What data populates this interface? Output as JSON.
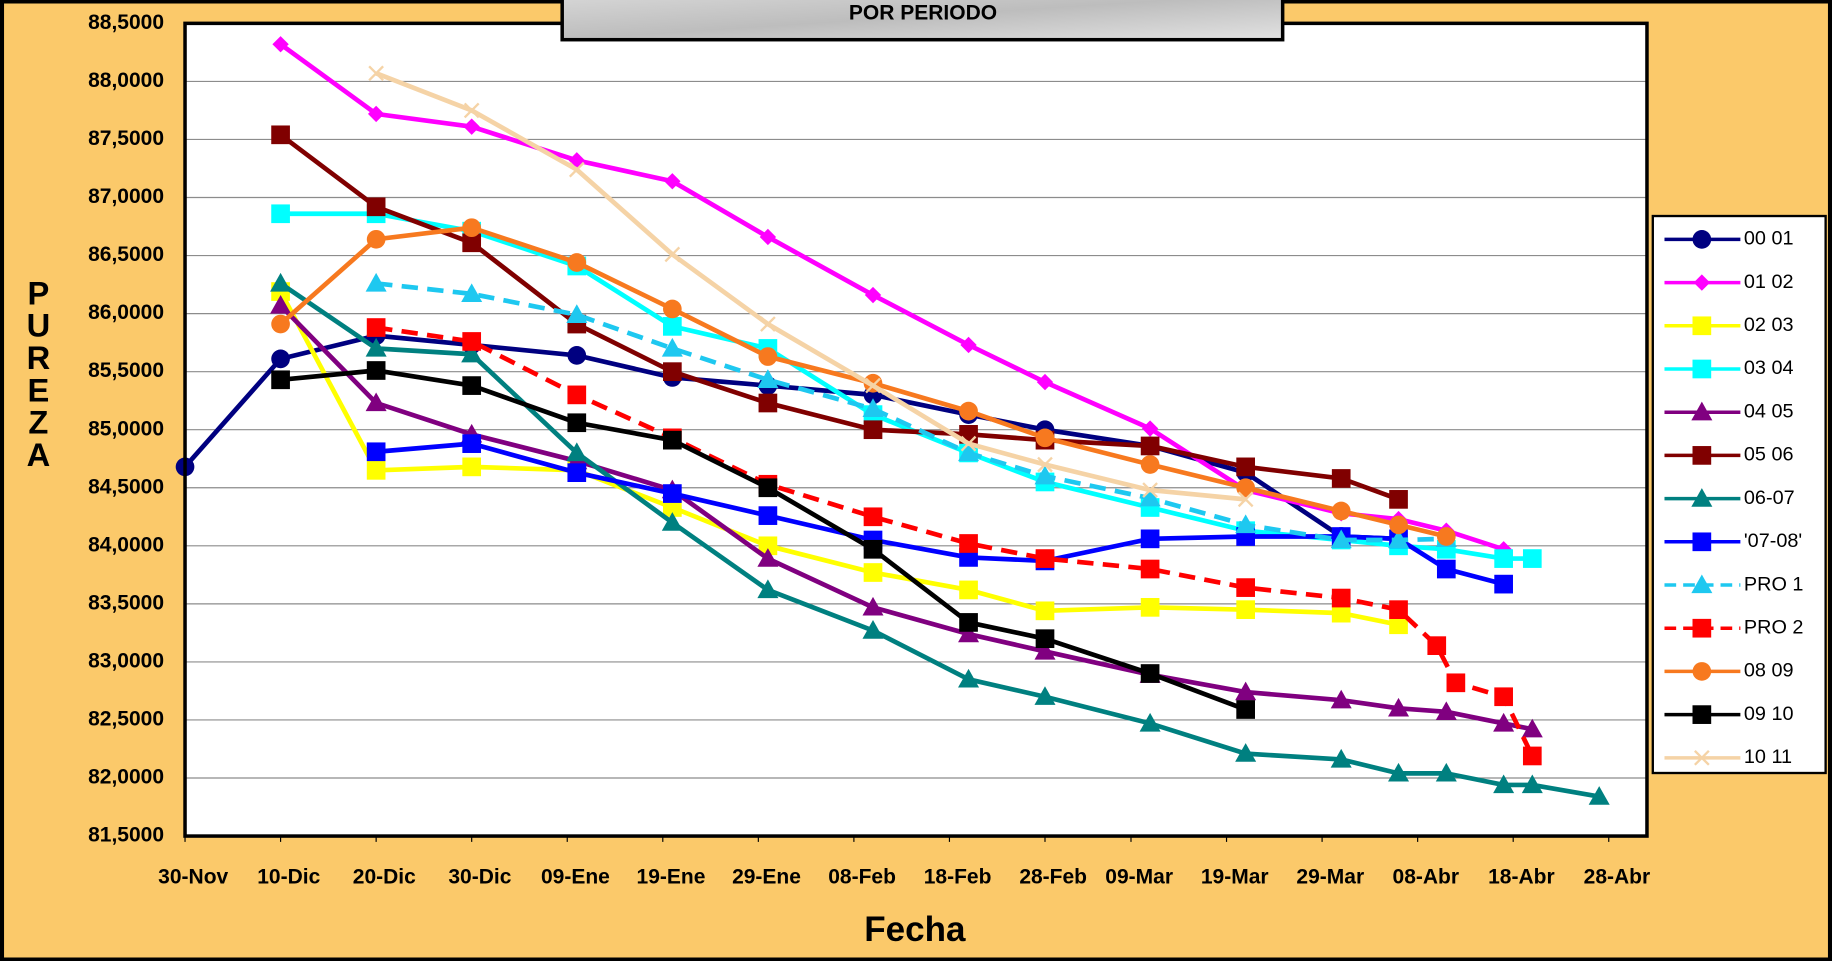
{
  "chart_data": {
    "type": "line",
    "title": "POR PERIODO",
    "x_label": "Fecha",
    "y_label": "PUREZA",
    "xlim": [
      0,
      153
    ],
    "xticks": [
      {
        "value": 0,
        "label": "30-Nov"
      },
      {
        "value": 10,
        "label": "10-Dic"
      },
      {
        "value": 20,
        "label": "20-Dic"
      },
      {
        "value": 30,
        "label": "30-Dic"
      },
      {
        "value": 40,
        "label": "09-Ene"
      },
      {
        "value": 50,
        "label": "19-Ene"
      },
      {
        "value": 60,
        "label": "29-Ene"
      },
      {
        "value": 70,
        "label": "08-Feb"
      },
      {
        "value": 80,
        "label": "18-Feb"
      },
      {
        "value": 90,
        "label": "28-Feb"
      },
      {
        "value": 99,
        "label": "09-Mar"
      },
      {
        "value": 109,
        "label": "19-Mar"
      },
      {
        "value": 119,
        "label": "29-Mar"
      },
      {
        "value": 129,
        "label": "08-Abr"
      },
      {
        "value": 139,
        "label": "18-Abr"
      },
      {
        "value": 149,
        "label": "28-Abr"
      }
    ],
    "ylim": [
      81.5,
      88.5
    ],
    "yticks": [
      {
        "value": 81.5,
        "label": "81,5000"
      },
      {
        "value": 82,
        "label": "82,0000"
      },
      {
        "value": 82.5,
        "label": "82,5000"
      },
      {
        "value": 83,
        "label": "83,0000"
      },
      {
        "value": 83.5,
        "label": "83,5000"
      },
      {
        "value": 84,
        "label": "84,0000"
      },
      {
        "value": 84.5,
        "label": "84,5000"
      },
      {
        "value": 85,
        "label": "85,0000"
      },
      {
        "value": 85.5,
        "label": "85,5000"
      },
      {
        "value": 86,
        "label": "86,0000"
      },
      {
        "value": 86.5,
        "label": "86,5000"
      },
      {
        "value": 87,
        "label": "87,0000"
      },
      {
        "value": 87.5,
        "label": "87,5000"
      },
      {
        "value": 88,
        "label": "88,0000"
      },
      {
        "value": 88.5,
        "label": "88,5000"
      }
    ],
    "grid": true,
    "legend": "right",
    "series": [
      {
        "name": "00 01",
        "color": "#000080",
        "marker": "circle",
        "dash": false,
        "x": [
          0,
          10,
          20,
          30,
          41,
          51,
          61,
          72,
          82,
          90,
          101,
          111,
          121,
          127
        ],
        "values": [
          84.68,
          85.61,
          85.81,
          85.73,
          85.64,
          85.45,
          85.38,
          85.3,
          85.13,
          85.0,
          84.86,
          84.63,
          84.08,
          84.06
        ]
      },
      {
        "name": "01 02",
        "color": "#ff00ff",
        "marker": "diamond",
        "dash": false,
        "x": [
          10,
          20,
          30,
          41,
          51,
          61,
          72,
          82,
          90,
          101,
          111,
          121,
          127,
          132,
          138
        ],
        "values": [
          88.32,
          87.72,
          87.61,
          87.32,
          87.14,
          86.66,
          86.16,
          85.73,
          85.41,
          85.01,
          84.48,
          84.28,
          84.23,
          84.13,
          83.97
        ]
      },
      {
        "name": "02 03",
        "color": "#ffff00",
        "marker": "square",
        "dash": false,
        "x": [
          10,
          20,
          30,
          41,
          51,
          61,
          72,
          82,
          90,
          101,
          111,
          121,
          127
        ],
        "values": [
          86.19,
          84.65,
          84.68,
          84.65,
          84.33,
          84.0,
          83.77,
          83.62,
          83.44,
          83.47,
          83.45,
          83.42,
          83.32
        ]
      },
      {
        "name": "03 04",
        "color": "#00ffff",
        "marker": "square",
        "dash": false,
        "x": [
          10,
          20,
          30,
          41,
          51,
          61,
          72,
          82,
          90,
          101,
          111,
          121,
          127,
          132,
          138,
          141
        ],
        "values": [
          86.86,
          86.86,
          86.71,
          86.41,
          85.89,
          85.7,
          85.13,
          84.8,
          84.55,
          84.33,
          84.13,
          84.05,
          84.0,
          83.97,
          83.89,
          83.89
        ]
      },
      {
        "name": "04 05",
        "color": "#800080",
        "marker": "triangle",
        "dash": false,
        "x": [
          10,
          20,
          30,
          41,
          51,
          61,
          72,
          82,
          90,
          101,
          111,
          121,
          127,
          132,
          138,
          141
        ],
        "values": [
          86.07,
          85.23,
          84.96,
          84.73,
          84.48,
          83.89,
          83.47,
          83.24,
          83.09,
          82.89,
          82.74,
          82.67,
          82.6,
          82.57,
          82.47,
          82.42
        ]
      },
      {
        "name": "05 06",
        "color": "#800000",
        "marker": "square",
        "dash": false,
        "x": [
          10,
          20,
          30,
          41,
          51,
          61,
          72,
          82,
          90,
          101,
          111,
          121,
          127
        ],
        "values": [
          87.54,
          86.92,
          86.61,
          85.91,
          85.5,
          85.23,
          85.0,
          84.96,
          84.91,
          84.86,
          84.68,
          84.58,
          84.4
        ]
      },
      {
        "name": "06-07",
        "color": "#008080",
        "marker": "triangle",
        "dash": false,
        "x": [
          10,
          20,
          30,
          41,
          51,
          61,
          72,
          82,
          90,
          101,
          111,
          121,
          127,
          132,
          138,
          141,
          148
        ],
        "values": [
          86.26,
          85.7,
          85.65,
          84.8,
          84.2,
          83.62,
          83.27,
          82.85,
          82.7,
          82.47,
          82.21,
          82.16,
          82.04,
          82.04,
          81.94,
          81.94,
          81.84
        ]
      },
      {
        "name": "'07-08'",
        "color": "#0000ff",
        "marker": "square",
        "dash": false,
        "x": [
          20,
          30,
          41,
          51,
          61,
          72,
          82,
          90,
          101,
          111,
          121,
          127,
          132,
          138
        ],
        "values": [
          84.81,
          84.88,
          84.63,
          84.45,
          84.26,
          84.05,
          83.9,
          83.87,
          84.06,
          84.08,
          84.08,
          84.06,
          83.8,
          83.67
        ]
      },
      {
        "name": "PRO 1",
        "color": "#1ec8f0",
        "marker": "triangle",
        "dash": true,
        "x": [
          20,
          30,
          41,
          51,
          61,
          72,
          82,
          90,
          101,
          111,
          121,
          127,
          132
        ],
        "values": [
          86.26,
          86.17,
          85.99,
          85.7,
          85.43,
          85.18,
          84.8,
          84.6,
          84.41,
          84.18,
          84.05,
          84.05,
          84.06
        ]
      },
      {
        "name": "PRO 2",
        "color": "#ff0000",
        "marker": "square",
        "dash": true,
        "x": [
          20,
          30,
          41,
          51,
          61,
          72,
          82,
          90,
          101,
          111,
          121,
          127,
          131,
          133,
          138,
          141
        ],
        "values": [
          85.88,
          85.76,
          85.3,
          84.93,
          84.53,
          84.25,
          84.02,
          83.89,
          83.8,
          83.64,
          83.55,
          83.45,
          83.14,
          82.82,
          82.7,
          82.19
        ]
      },
      {
        "name": "08 09",
        "color": "#f7791f",
        "marker": "circle",
        "dash": false,
        "x": [
          10,
          20,
          30,
          41,
          51,
          61,
          72,
          82,
          90,
          101,
          111,
          121,
          127,
          132
        ],
        "values": [
          85.91,
          86.64,
          86.74,
          86.44,
          86.04,
          85.63,
          85.4,
          85.16,
          84.93,
          84.7,
          84.5,
          84.3,
          84.18,
          84.08
        ]
      },
      {
        "name": "09 10",
        "color": "#000000",
        "marker": "square",
        "dash": false,
        "x": [
          10,
          20,
          30,
          41,
          51,
          61,
          72,
          82,
          90,
          101,
          111
        ],
        "values": [
          85.43,
          85.51,
          85.38,
          85.06,
          84.91,
          84.5,
          83.97,
          83.34,
          83.2,
          82.9,
          82.59
        ]
      },
      {
        "name": "10 11",
        "color": "#f5d3a6",
        "marker": "x",
        "dash": false,
        "x": [
          20,
          30,
          41,
          51,
          61,
          72,
          82,
          90,
          101,
          111
        ],
        "values": [
          88.07,
          87.75,
          87.24,
          86.51,
          85.91,
          85.38,
          84.88,
          84.7,
          84.48,
          84.4
        ]
      }
    ]
  }
}
